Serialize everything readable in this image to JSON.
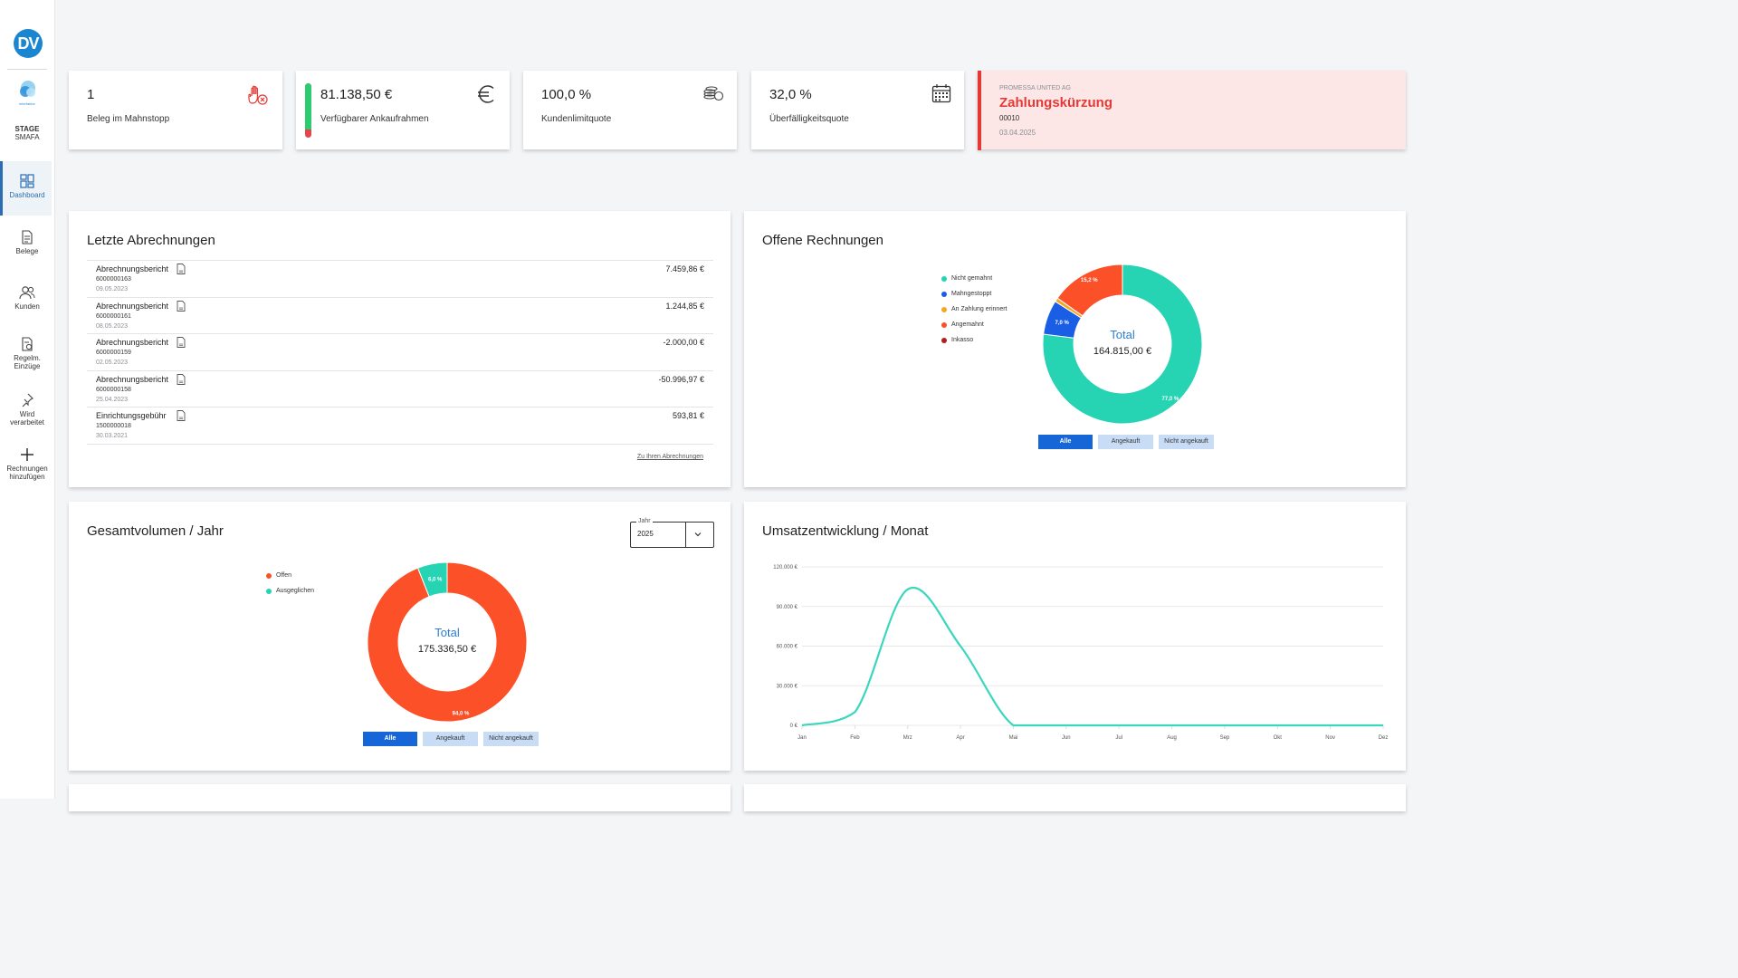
{
  "sidebar": {
    "logo": "DV",
    "brand": "interfaktor",
    "env_name": "STAGE",
    "env_sub": "SMAFA",
    "items": [
      {
        "label": "Dashboard",
        "icon": "dashboard-icon",
        "active": true
      },
      {
        "label": "Belege",
        "icon": "document-icon"
      },
      {
        "label": "Kunden",
        "icon": "users-icon"
      },
      {
        "label": "Regelm.",
        "label2": "Einzüge",
        "icon": "recurring-document-icon"
      },
      {
        "label": "Wird",
        "label2": "verarbeitet",
        "icon": "pin-icon"
      },
      {
        "label": "Rechnungen",
        "label2": "hinzufügen",
        "icon": "plus-icon"
      }
    ]
  },
  "kpis": [
    {
      "value": "1",
      "label": "Beleg im Mahnstopp",
      "icon": "stop-hand-icon"
    },
    {
      "value": "81.138,50 €",
      "label": "Verfügbarer Ankaufrahmen",
      "icon": "euro-icon",
      "gauge_fraction": 0.85
    },
    {
      "value": "100,0 %",
      "label": "Kundenlimitquote",
      "icon": "coins-icon"
    },
    {
      "value": "32,0 %",
      "label": "Überfälligkeitsquote",
      "icon": "calendar-icon"
    }
  ],
  "alert": {
    "company": "PROMESSA UNITED AG",
    "title": "Zahlungskürzung",
    "code": "00010",
    "date": "03.04.2025",
    "color": "#e53935"
  },
  "settlements": {
    "title": "Letzte Abrechnungen",
    "rows": [
      {
        "title": "Abrechnungsbericht",
        "number": "6000000163",
        "date": "09.05.2023",
        "amount": "7.459,86 €"
      },
      {
        "title": "Abrechnungsbericht",
        "number": "6000000161",
        "date": "08.05.2023",
        "amount": "1.244,85 €"
      },
      {
        "title": "Abrechnungsbericht",
        "number": "6000000159",
        "date": "02.05.2023",
        "amount": "-2.000,00 €"
      },
      {
        "title": "Abrechnungsbericht",
        "number": "6000000158",
        "date": "25.04.2023",
        "amount": "-50.996,97 €"
      },
      {
        "title": "Einrichtungsgebühr",
        "number": "1500000018",
        "date": "30.03.2021",
        "amount": "593,81 €"
      }
    ],
    "link": "Zu Ihren Abrechnungen"
  },
  "open_invoices": {
    "title": "Offene Rechnungen",
    "filters": [
      "Alle",
      "Angekauft",
      "Nicht angekauft"
    ],
    "total_label": "Total",
    "total_value": "164.815,00 €"
  },
  "yearly_volume": {
    "title": "Gesamtvolumen / Jahr",
    "year_label": "Jahr",
    "year_value": "2025",
    "filters": [
      "Alle",
      "Angekauft",
      "Nicht angekauft"
    ],
    "total_label": "Total",
    "total_value": "175.336,50 €"
  },
  "monthly_revenue": {
    "title": "Umsatzentwicklung / Monat"
  },
  "chart_data": [
    {
      "type": "pie",
      "categories": [
        "Nicht gemahnt",
        "Mahngestoppt",
        "An Zahlung erinnert",
        "Angemahnt",
        "Inkasso"
      ],
      "values": [
        77.0,
        7.0,
        0.8,
        15.2,
        0.0
      ],
      "slice_labels": [
        "77,0 %",
        "7,0 %",
        "",
        "15,2 %",
        ""
      ],
      "colors": [
        "#26d4b4",
        "#1a5ee6",
        "#f5a623",
        "#fc5128",
        "#b71c1c"
      ],
      "legend": "left"
    },
    {
      "type": "pie",
      "categories": [
        "Offen",
        "Ausgeglichen"
      ],
      "values": [
        94.0,
        6.0
      ],
      "slice_labels": [
        "94,0 %",
        "6,0 %"
      ],
      "colors": [
        "#fc5128",
        "#26d4b4"
      ],
      "legend": "left"
    },
    {
      "type": "line",
      "x": [
        "Jan",
        "Feb",
        "Mrz",
        "Apr",
        "Mai",
        "Jun",
        "Jul",
        "Aug",
        "Sep",
        "Okt",
        "Nov",
        "Dez"
      ],
      "series": [
        {
          "values": [
            0,
            10000,
            103000,
            60000,
            0,
            0,
            0,
            0,
            0,
            0,
            0,
            0
          ],
          "color": "#3ad6bd"
        }
      ],
      "ylim": [
        0,
        120000
      ],
      "yticks": [
        "0 €",
        "30.000 €",
        "60.000 €",
        "90.000 €",
        "120.000 €"
      ],
      "grid": true
    }
  ]
}
